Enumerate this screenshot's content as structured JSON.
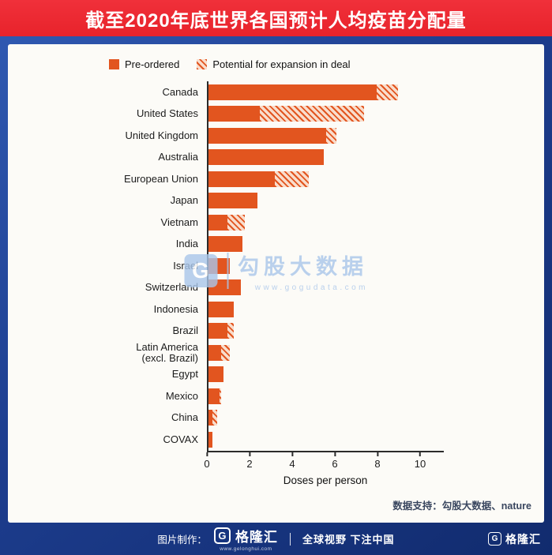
{
  "title": "截至2020年底世界各国预计人均疫苗分配量",
  "chart_data": {
    "type": "bar",
    "orientation": "horizontal",
    "title": "截至2020年底世界各国预计人均疫苗分配量",
    "categories": [
      "Canada",
      "United States",
      "United Kingdom",
      "Australia",
      "European Union",
      "Japan",
      "Vietnam",
      "India",
      "Israel",
      "Switzerland",
      "Indonesia",
      "Brazil",
      "Latin America\n(excl. Brazil)",
      "Egypt",
      "Mexico",
      "China",
      "COVAX"
    ],
    "series": [
      {
        "name": "Pre-ordered",
        "values": [
          7.9,
          2.4,
          5.5,
          5.4,
          3.1,
          2.3,
          0.9,
          1.6,
          1.0,
          1.5,
          1.2,
          0.9,
          0.6,
          0.7,
          0.5,
          0.2,
          0.2
        ]
      },
      {
        "name": "Potential for expansion in deal",
        "values": [
          1.0,
          4.9,
          0.5,
          0,
          1.6,
          0,
          0.8,
          0,
          0,
          0,
          0,
          0.3,
          0.4,
          0,
          0.1,
          0.2,
          0
        ]
      }
    ],
    "xlabel": "Doses per person",
    "xlim": [
      0,
      10
    ],
    "xticks": [
      0,
      2,
      4,
      6,
      8,
      10
    ],
    "legend_position": "top",
    "grid": false
  },
  "watermark": {
    "brand": "勾股大数据",
    "url": "www.gogudata.com",
    "logo_glyph": "G"
  },
  "source_note": "数据支持：勾股大数据、nature",
  "footer": {
    "made_by_label": "图片制作：",
    "brand": "格隆汇",
    "brand_url": "www.gelonghui.com",
    "slogan": "全球视野 下注中国",
    "right_brand": "格隆汇",
    "logo_glyph": "G"
  },
  "colors": {
    "banner": "#e8232b",
    "bar": "#e2551f",
    "hatch_bg": "#f9ddcc",
    "watermark": "#a9c6ea",
    "bg_top": "#315bb4",
    "bg_bottom": "#112b6e"
  }
}
